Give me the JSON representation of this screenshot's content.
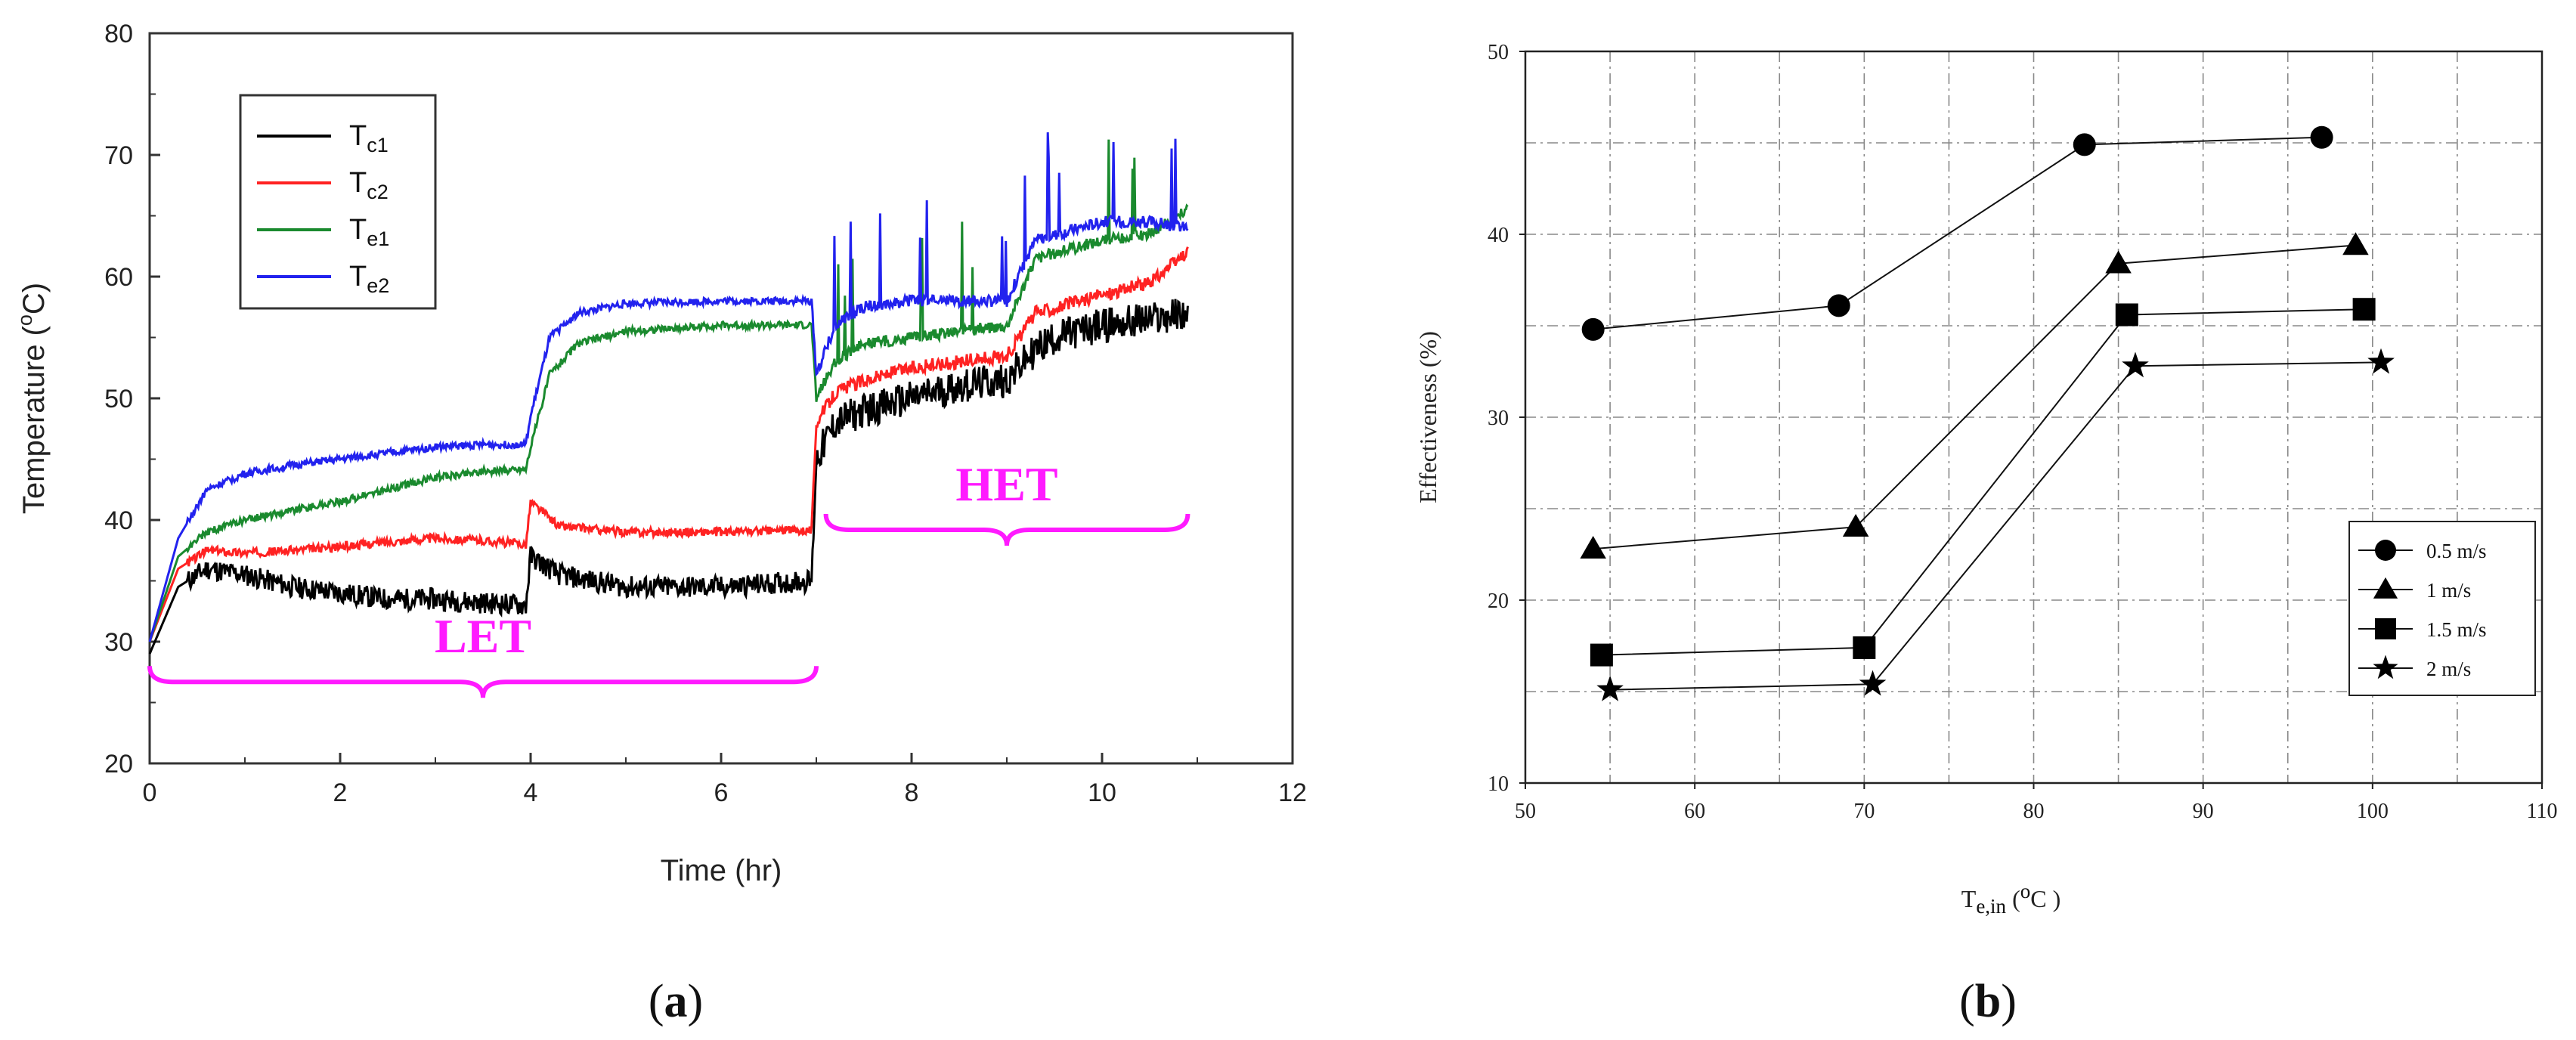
{
  "chart_data": [
    {
      "type": "line",
      "panel": "(a)",
      "panel_letter": "a",
      "xlabel": "Time (hr)",
      "ylabel_prefix": "Temperature (",
      "ylabel_sup": "o",
      "ylabel_suffix": "C)",
      "xlim": [
        0,
        12
      ],
      "ylim": [
        20,
        80
      ],
      "xticks": [
        0,
        2,
        4,
        6,
        8,
        10,
        12
      ],
      "yticks": [
        20,
        30,
        40,
        50,
        60,
        70,
        80
      ],
      "legend_position": "top-left",
      "series": [
        {
          "name": "Tc1",
          "label_main": "T",
          "label_sub": "c1",
          "color": "#000000",
          "x": [
            0,
            0.3,
            0.6,
            1,
            1.5,
            2,
            2.5,
            3,
            3.5,
            3.95,
            4.0,
            4.3,
            5,
            6,
            6.95,
            7.0,
            7.2,
            7.5,
            8,
            8.5,
            9,
            9.3,
            9.5,
            10,
            10.5,
            10.9
          ],
          "y": [
            29,
            34.5,
            36,
            35.5,
            34.5,
            34,
            33.5,
            33.5,
            33.2,
            33,
            37,
            35.5,
            34.5,
            34.5,
            35,
            45,
            48,
            49,
            50,
            51,
            51.5,
            54,
            55,
            56,
            56.5,
            57
          ]
        },
        {
          "name": "Tc2",
          "label_main": "T",
          "label_sub": "c2",
          "color": "#ff2222",
          "x": [
            0,
            0.3,
            0.6,
            1,
            1.5,
            2,
            2.5,
            3,
            3.5,
            3.95,
            4.0,
            4.3,
            5,
            6,
            6.95,
            7.0,
            7.2,
            7.5,
            8,
            8.5,
            9,
            9.3,
            10,
            10.5,
            10.9
          ],
          "y": [
            30,
            36,
            37.5,
            37.3,
            37.5,
            37.8,
            38.2,
            38.5,
            38.3,
            38,
            41.5,
            39.5,
            39,
            39,
            39.2,
            48,
            50.5,
            51.5,
            52.5,
            53,
            53.5,
            57,
            58.5,
            59.5,
            62
          ]
        },
        {
          "name": "Te1",
          "label_main": "T",
          "label_sub": "e1",
          "color": "#1a8a2e",
          "x": [
            0,
            0.3,
            0.6,
            1,
            1.5,
            2,
            2.5,
            3,
            3.5,
            3.95,
            4.0,
            4.2,
            4.5,
            5,
            6,
            6.95,
            7.0,
            7.2,
            7.5,
            8,
            8.5,
            9,
            9.3,
            10,
            10.5,
            10.9
          ],
          "y": [
            30,
            37,
            39,
            40,
            40.8,
            41.5,
            42.5,
            43.5,
            44,
            44.2,
            46,
            52,
            54.5,
            55.5,
            56,
            56,
            50,
            53,
            54.5,
            55,
            55.5,
            56,
            61.5,
            63,
            63.5,
            65.5
          ]
        },
        {
          "name": "Te2",
          "label_main": "T",
          "label_sub": "e2",
          "color": "#2222ee",
          "x": [
            0,
            0.3,
            0.6,
            1,
            1.5,
            2,
            2.5,
            3,
            3.5,
            3.95,
            4.0,
            4.2,
            4.5,
            5,
            6,
            6.95,
            7.0,
            7.2,
            7.5,
            8,
            8.5,
            9,
            9.3,
            10,
            10.5,
            10.9
          ],
          "y": [
            30,
            38.5,
            42.5,
            43.8,
            44.5,
            45,
            45.5,
            46,
            46.2,
            46.2,
            48.5,
            55,
            57,
            57.8,
            58,
            58,
            52,
            56,
            57.5,
            58,
            58,
            58,
            63,
            64.5,
            64.5,
            64
          ]
        }
      ],
      "annotations": [
        {
          "text": "LET",
          "x_start": 0,
          "x_end": 7,
          "y": 28,
          "side": "below"
        },
        {
          "text": "HET",
          "x_start": 7.1,
          "x_end": 10.9,
          "y": 40.5,
          "side": "below"
        }
      ]
    },
    {
      "type": "line",
      "panel": "(b)",
      "panel_letter": "b",
      "xlabel_main": "T",
      "xlabel_sub": "e,in",
      "xlabel_unit_pre": " (",
      "xlabel_unit_sup": "o",
      "xlabel_unit_post": "C )",
      "ylabel": "Effectiveness (%)",
      "xlim": [
        50,
        110
      ],
      "ylim": [
        10,
        50
      ],
      "xticks": [
        50,
        60,
        70,
        80,
        90,
        100,
        110
      ],
      "yticks": [
        10,
        20,
        30,
        40,
        50
      ],
      "grid": true,
      "legend_position": "bottom-right",
      "series": [
        {
          "name": "0.5 m/s",
          "marker": "circle",
          "x": [
            54,
            68.5,
            83,
            97
          ],
          "y": [
            34.8,
            36.1,
            44.9,
            45.3
          ]
        },
        {
          "name": "1 m/s",
          "marker": "triangle",
          "x": [
            54,
            69.5,
            85,
            99
          ],
          "y": [
            22.8,
            24,
            38.4,
            39.4
          ]
        },
        {
          "name": "1.5 m/s",
          "marker": "square",
          "x": [
            54.5,
            70,
            85.5,
            99.5
          ],
          "y": [
            17,
            17.4,
            35.6,
            35.9
          ]
        },
        {
          "name": "2 m/s",
          "marker": "star",
          "x": [
            55,
            70.5,
            86,
            100.5
          ],
          "y": [
            15.1,
            15.4,
            32.8,
            33
          ]
        }
      ]
    }
  ]
}
